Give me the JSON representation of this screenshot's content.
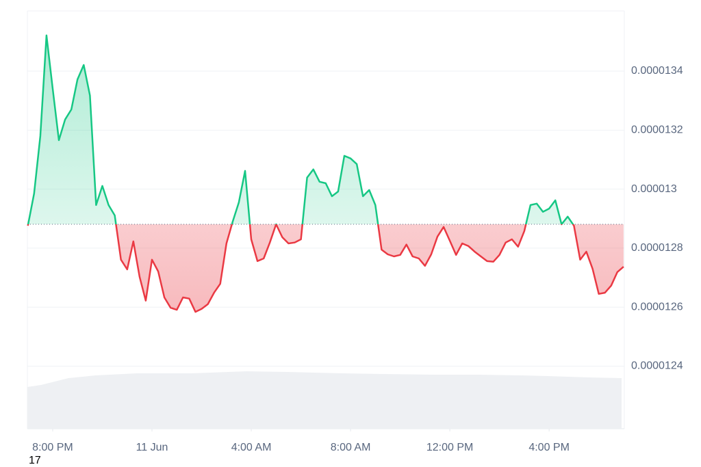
{
  "chart_data": {
    "type": "baseline",
    "baseline": 1.2881e-05,
    "up_color": "#16c784",
    "down_color": "#ea3943",
    "grid": true,
    "xlim": [
      18.98,
      43.03
    ],
    "xticks": [
      {
        "value": 20,
        "label": "8:00 PM"
      },
      {
        "value": 24,
        "label": "11 Jun"
      },
      {
        "value": 28,
        "label": "4:00 AM"
      },
      {
        "value": 32,
        "label": "8:00 AM"
      },
      {
        "value": 36,
        "label": "12:00 PM"
      },
      {
        "value": 40,
        "label": "4:00 PM"
      }
    ],
    "ylim": [
      1.2188e-05,
      1.3604e-05
    ],
    "yticks": [
      1.24e-05,
      1.26e-05,
      1.28e-05,
      1.3e-05,
      1.32e-05,
      1.34e-05
    ],
    "footnote": "17",
    "x": [
      19,
      19.25,
      19.5,
      19.75,
      20,
      20.25,
      20.5,
      20.75,
      21,
      21.25,
      21.5,
      21.75,
      22,
      22.25,
      22.5,
      22.75,
      23,
      23.25,
      23.5,
      23.75,
      24,
      24.25,
      24.5,
      24.75,
      25,
      25.25,
      25.5,
      25.75,
      26,
      26.25,
      26.5,
      26.75,
      27,
      27.25,
      27.5,
      27.75,
      28,
      28.25,
      28.5,
      28.75,
      29,
      29.25,
      29.5,
      29.75,
      30,
      30.25,
      30.5,
      30.75,
      31,
      31.25,
      31.5,
      31.75,
      32,
      32.25,
      32.5,
      32.75,
      33,
      33.25,
      33.5,
      33.75,
      34,
      34.25,
      34.5,
      34.75,
      35,
      35.25,
      35.5,
      35.75,
      36,
      36.25,
      36.5,
      36.75,
      37,
      37.25,
      37.5,
      37.75,
      38,
      38.25,
      38.5,
      38.75,
      39,
      39.25,
      39.5,
      39.75,
      40,
      40.25,
      40.5,
      40.75,
      41,
      41.25,
      41.5,
      41.75,
      42,
      42.25,
      42.5,
      42.75,
      43
    ],
    "values": [
      1.2876e-05,
      1.2985e-05,
      1.318e-05,
      1.3521e-05,
      1.334e-05,
      1.3166e-05,
      1.3236e-05,
      1.327e-05,
      1.3372e-05,
      1.3421e-05,
      1.3317e-05,
      1.2946e-05,
      1.3011e-05,
      1.2946e-05,
      1.2911e-05,
      1.2761e-05,
      1.2728e-05,
      1.2823e-05,
      1.2703e-05,
      1.2622e-05,
      1.2761e-05,
      1.2721e-05,
      1.2633e-05,
      1.2598e-05,
      1.2591e-05,
      1.2633e-05,
      1.2629e-05,
      1.2584e-05,
      1.2594e-05,
      1.261e-05,
      1.2649e-05,
      1.2679e-05,
      1.2816e-05,
      1.289e-05,
      1.2955e-05,
      1.3062e-05,
      1.283e-05,
      1.2756e-05,
      1.2765e-05,
      1.2819e-05,
      1.2881e-05,
      1.2837e-05,
      1.2816e-05,
      1.2819e-05,
      1.283e-05,
      1.3039e-05,
      1.3067e-05,
      1.3025e-05,
      1.302e-05,
      1.2976e-05,
      1.2992e-05,
      1.3113e-05,
      1.3104e-05,
      1.3085e-05,
      1.2976e-05,
      1.2997e-05,
      1.2946e-05,
      1.2795e-05,
      1.2779e-05,
      1.2772e-05,
      1.2777e-05,
      1.2812e-05,
      1.2772e-05,
      1.2765e-05,
      1.274e-05,
      1.2779e-05,
      1.2839e-05,
      1.2872e-05,
      1.2825e-05,
      1.2777e-05,
      1.2816e-05,
      1.2807e-05,
      1.2788e-05,
      1.2772e-05,
      1.2756e-05,
      1.2754e-05,
      1.2777e-05,
      1.2819e-05,
      1.283e-05,
      1.2805e-05,
      1.2858e-05,
      1.2946e-05,
      1.2951e-05,
      1.2923e-05,
      1.2934e-05,
      1.2962e-05,
      1.2881e-05,
      1.2907e-05,
      1.2876e-05,
      1.2761e-05,
      1.2788e-05,
      1.273e-05,
      1.2645e-05,
      1.2649e-05,
      1.2673e-05,
      1.2719e-05,
      1.2737e-05
    ]
  }
}
